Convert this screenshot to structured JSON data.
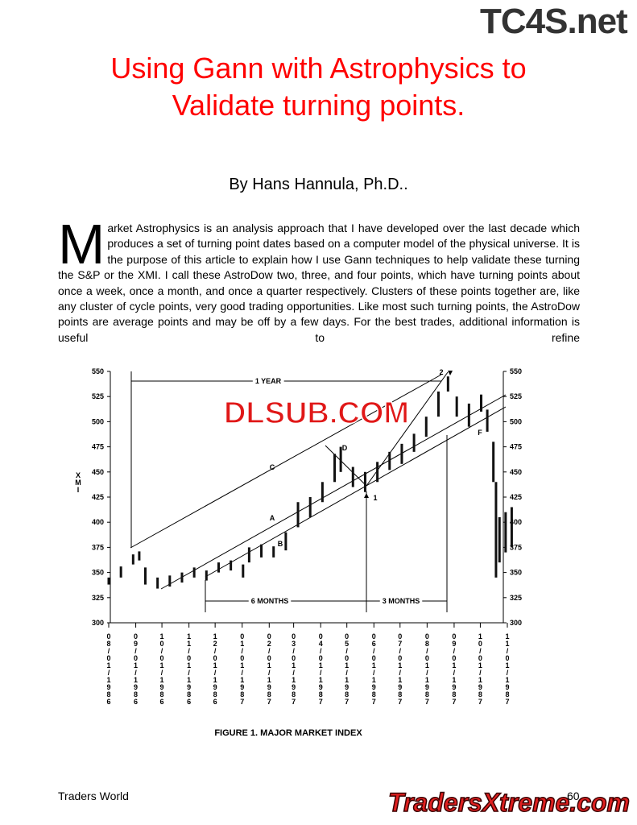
{
  "header": {
    "watermark": "TC4S.net",
    "title_lines": [
      "Using Gann with Astrophysics to",
      "Validate turning points."
    ],
    "byline": "By Hans Hannula, Ph.D.."
  },
  "article": {
    "drop_cap": "M",
    "body": "arket Astrophysics is an analysis approach that I have developed over the last decade which produces a set of turning point dates based on a computer model of the physical universe. It is the purpose of this article to explain how I use Gann techniques to help validate these turning the S&P or the XMI. I call these AstroDow two, three, and four points, which have turning points about once a week, once a month, and once a quarter respectively. Clusters of these points together are, like any cluster of cycle points, very good trading opportunities. Like most such turning points, the AstroDow points are average points and may be off by a few days. For the best trades, additional information is useful to refine"
  },
  "chart_data": {
    "type": "range",
    "y_label": "XMI",
    "caption": "FIGURE 1.  MAJOR MARKET INDEX",
    "watermark": "DLSUB.COM",
    "annotations": [
      "1 YEAR",
      "6 MONTHS",
      "3 MONTHS",
      "A",
      "B",
      "C",
      "D",
      "F",
      "1",
      "2"
    ],
    "x": [
      "08/01/1986",
      "08/15/1986",
      "08/29/1986",
      "09/05/1986",
      "09/12/1986",
      "09/26/1986",
      "10/10/1986",
      "10/24/1986",
      "11/07/1986",
      "11/21/1986",
      "12/05/1986",
      "12/19/1986",
      "01/02/1987",
      "01/09/1987",
      "01/23/1987",
      "02/06/1987",
      "02/20/1987",
      "03/06/1987",
      "03/20/1987",
      "04/03/1987",
      "04/17/1987",
      "04/24/1987",
      "05/08/1987",
      "05/22/1987",
      "06/05/1987",
      "06/19/1987",
      "07/03/1987",
      "07/17/1987",
      "07/31/1987",
      "08/14/1987",
      "08/25/1987",
      "09/04/1987",
      "09/18/1987",
      "10/02/1987",
      "10/09/1987",
      "10/16/1987",
      "10/19/1987",
      "10/23/1987",
      "10/30/1987",
      "11/06/1987"
    ],
    "high": [
      345,
      356,
      368,
      371,
      355,
      345,
      347,
      350,
      355,
      352,
      360,
      362,
      358,
      375,
      378,
      376,
      390,
      420,
      425,
      440,
      468,
      475,
      455,
      450,
      460,
      470,
      478,
      488,
      505,
      530,
      545,
      525,
      518,
      527,
      512,
      480,
      440,
      405,
      410,
      415
    ],
    "low": [
      338,
      345,
      358,
      362,
      338,
      334,
      336,
      340,
      345,
      342,
      350,
      352,
      345,
      360,
      365,
      365,
      372,
      395,
      405,
      420,
      440,
      450,
      435,
      430,
      440,
      452,
      458,
      470,
      485,
      505,
      530,
      505,
      495,
      510,
      490,
      440,
      345,
      360,
      370,
      375
    ],
    "color": "#111111",
    "ylim": [
      300,
      550
    ],
    "yticks": [
      300,
      325,
      350,
      375,
      400,
      425,
      450,
      475,
      500,
      525,
      550
    ],
    "xticks": [
      "08/01/1986",
      "09/01/1986",
      "10/01/1986",
      "11/01/1986",
      "12/01/1986",
      "01/01/1987",
      "02/01/1987",
      "03/01/1987",
      "04/01/1987",
      "05/01/1987",
      "06/01/1987",
      "07/01/1987",
      "08/01/1987",
      "09/01/1987",
      "10/01/1987",
      "11/01/1987"
    ]
  },
  "footer": {
    "publication": "Traders World",
    "page": "60",
    "watermark": "TradersXtreme.com"
  }
}
